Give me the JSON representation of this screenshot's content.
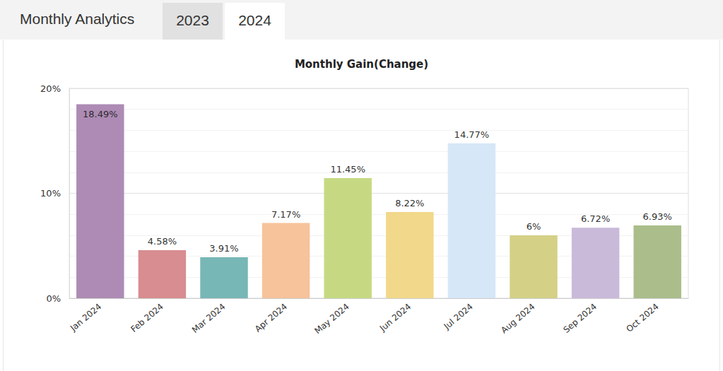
{
  "header": {
    "title": "Monthly Analytics",
    "tabs": [
      "2023",
      "2024"
    ],
    "selected_tab": "2024"
  },
  "chart_data": {
    "type": "bar",
    "title": "Monthly Gain(Change)",
    "categories": [
      "Jan 2024",
      "Feb 2024",
      "Mar 2024",
      "Apr 2024",
      "May 2024",
      "Jun 2024",
      "Jul 2024",
      "Aug 2024",
      "Sep 2024",
      "Oct 2024"
    ],
    "values": [
      18.49,
      4.58,
      3.91,
      7.17,
      11.45,
      8.22,
      14.77,
      6,
      6.72,
      6.93
    ],
    "value_labels": [
      "18.49%",
      "4.58%",
      "3.91%",
      "7.17%",
      "11.45%",
      "8.22%",
      "14.77%",
      "6%",
      "6.72%",
      "6.93%"
    ],
    "colors": [
      "#a985b0",
      "#d6878a",
      "#70b3b2",
      "#f5c096",
      "#c3d77b",
      "#f0d684",
      "#d4e6f7",
      "#d2cd80",
      "#c7b6d8",
      "#a5b985"
    ],
    "ylim": [
      0,
      20
    ],
    "yticks": [
      {
        "value": 0,
        "label": "0%"
      },
      {
        "value": 10,
        "label": "10%"
      },
      {
        "value": 20,
        "label": "20%"
      }
    ],
    "grid": true,
    "data_labels": true
  }
}
